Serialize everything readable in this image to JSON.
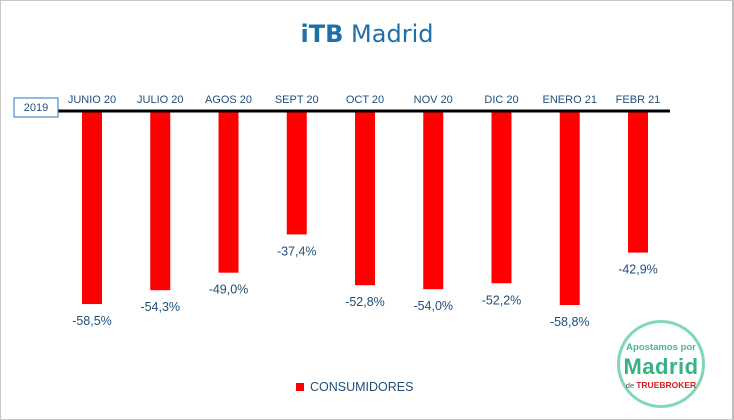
{
  "chart_data": {
    "type": "bar",
    "title_part1": "iTB",
    "title_part2": "Madrid",
    "baseline_label": "2019",
    "categories": [
      "JUNIO 20",
      "JULIO 20",
      "AGOS 20",
      "SEPT 20",
      "OCT 20",
      "NOV 20",
      "DIC 20",
      "ENERO 21",
      "FEBR 21"
    ],
    "series": [
      {
        "name": "CONSUMIDORES",
        "color": "#ff0000",
        "values": [
          -58.5,
          -54.3,
          -49.0,
          -37.4,
          -52.8,
          -54.0,
          -52.2,
          -58.8,
          -42.9
        ],
        "labels": [
          "-58,5%",
          "-54,3%",
          "-49,0%",
          "-37,4%",
          "-52,8%",
          "-54,0%",
          "-52,2%",
          "-58,8%",
          "-42,9%"
        ]
      }
    ],
    "ylim": [
      -60,
      0
    ],
    "grid": false,
    "legend_position": "bottom"
  },
  "logo": {
    "line1": "Apostamos por",
    "line2": "Madrid",
    "line3_prefix": "de",
    "line3_brand": "TRUEBROKER"
  }
}
